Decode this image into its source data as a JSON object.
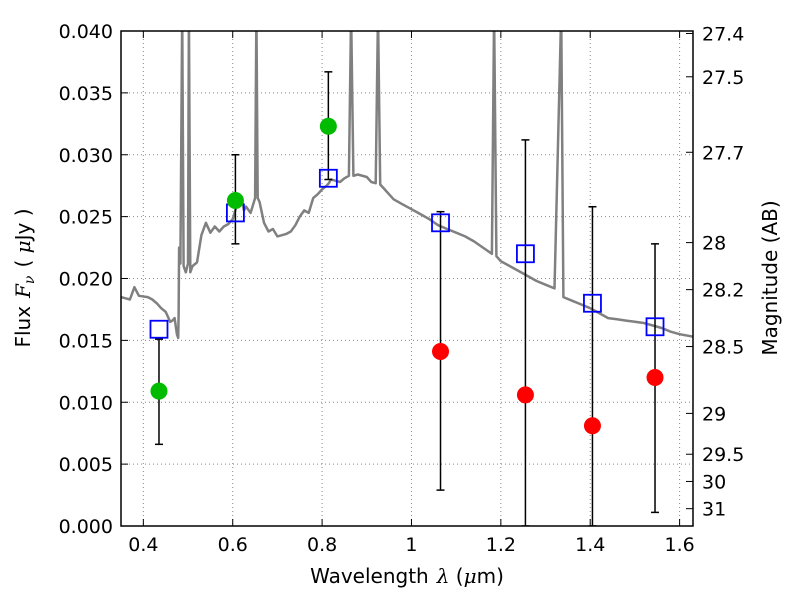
{
  "chart_data": {
    "type": "scatter",
    "title": "",
    "xlabel": "Wavelength",
    "xlabel_symbol": "λ",
    "xlabel_unit_open": " (",
    "xlabel_unit_mu": "μ",
    "xlabel_unit_rest": "m)",
    "ylabel": "Flux",
    "ylabel_symbol": "F",
    "ylabel_subscript": "ν",
    "ylabel_unit_open": "( ",
    "ylabel_unit_mu": "μ",
    "ylabel_unit_rest": "Jy )",
    "y2label": "Magnitude (AB)",
    "xlim": [
      0.35,
      1.63
    ],
    "ylim": [
      0.0,
      0.04
    ],
    "grid": true,
    "x_ticks": [
      0.4,
      0.6,
      0.8,
      1.0,
      1.2,
      1.4,
      1.6
    ],
    "x_tick_labels": [
      "0.4",
      "0.6",
      "0.8",
      "1",
      "1.2",
      "1.4",
      "1.6"
    ],
    "y_ticks": [
      0.0,
      0.005,
      0.01,
      0.015,
      0.02,
      0.025,
      0.03,
      0.035,
      0.04
    ],
    "y_tick_labels": [
      "0.000",
      "0.005",
      "0.010",
      "0.015",
      "0.020",
      "0.025",
      "0.030",
      "0.035",
      "0.040"
    ],
    "mag_ticks": [
      {
        "label": "27.4",
        "flux": 0.0398
      },
      {
        "label": "27.5",
        "flux": 0.0363
      },
      {
        "label": "27.7",
        "flux": 0.0302
      },
      {
        "label": "28",
        "flux": 0.0229
      },
      {
        "label": "28.2",
        "flux": 0.0191
      },
      {
        "label": "28.5",
        "flux": 0.0145
      },
      {
        "label": "29",
        "flux": 0.0091
      },
      {
        "label": "29.5",
        "flux": 0.0058
      },
      {
        "label": "30",
        "flux": 0.0036
      },
      {
        "label": "31",
        "flux": 0.0014
      }
    ],
    "colors": {
      "model_spectrum": "#808080",
      "detections": "#00bb00",
      "non_detections": "#ff0000",
      "model_photometry": "#0000ff",
      "errorbars": "#000000",
      "grid": "#888888"
    },
    "series": [
      {
        "kind": "spectrum",
        "points": [
          [
            0.35,
            0.0185
          ],
          [
            0.37,
            0.0183
          ],
          [
            0.38,
            0.0193
          ],
          [
            0.39,
            0.0186
          ],
          [
            0.41,
            0.0185
          ],
          [
            0.42,
            0.0183
          ],
          [
            0.43,
            0.018
          ],
          [
            0.44,
            0.0176
          ],
          [
            0.45,
            0.0173
          ],
          [
            0.46,
            0.0165
          ],
          [
            0.465,
            0.0166
          ],
          [
            0.47,
            0.0168
          ],
          [
            0.475,
            0.0155
          ],
          [
            0.478,
            0.0152
          ],
          [
            0.479,
            0.017
          ],
          [
            0.48,
            0.0225
          ],
          [
            0.483,
            0.0212
          ],
          [
            0.487,
            0.0415
          ],
          [
            0.49,
            0.021
          ],
          [
            0.495,
            0.0205
          ],
          [
            0.5,
            0.0212
          ],
          [
            0.502,
            0.0415
          ],
          [
            0.505,
            0.0205
          ],
          [
            0.51,
            0.021
          ],
          [
            0.52,
            0.0213
          ],
          [
            0.53,
            0.0235
          ],
          [
            0.54,
            0.0245
          ],
          [
            0.55,
            0.0237
          ],
          [
            0.56,
            0.0242
          ],
          [
            0.57,
            0.0238
          ],
          [
            0.58,
            0.0242
          ],
          [
            0.59,
            0.0244
          ],
          [
            0.6,
            0.0248
          ],
          [
            0.61,
            0.026
          ],
          [
            0.62,
            0.0265
          ],
          [
            0.625,
            0.0255
          ],
          [
            0.63,
            0.0258
          ],
          [
            0.64,
            0.0253
          ],
          [
            0.65,
            0.0265
          ],
          [
            0.653,
            0.0415
          ],
          [
            0.656,
            0.0265
          ],
          [
            0.66,
            0.0262
          ],
          [
            0.67,
            0.0245
          ],
          [
            0.68,
            0.0238
          ],
          [
            0.69,
            0.024
          ],
          [
            0.7,
            0.0234
          ],
          [
            0.71,
            0.0235
          ],
          [
            0.72,
            0.0236
          ],
          [
            0.73,
            0.0238
          ],
          [
            0.74,
            0.0243
          ],
          [
            0.75,
            0.025
          ],
          [
            0.76,
            0.0255
          ],
          [
            0.77,
            0.0253
          ],
          [
            0.78,
            0.0265
          ],
          [
            0.79,
            0.0268
          ],
          [
            0.8,
            0.0272
          ],
          [
            0.81,
            0.0275
          ],
          [
            0.815,
            0.0277
          ],
          [
            0.82,
            0.028
          ],
          [
            0.83,
            0.0279
          ],
          [
            0.84,
            0.0278
          ],
          [
            0.85,
            0.0281
          ],
          [
            0.86,
            0.0283
          ],
          [
            0.865,
            0.0415
          ],
          [
            0.87,
            0.0283
          ],
          [
            0.88,
            0.0284
          ],
          [
            0.9,
            0.0282
          ],
          [
            0.91,
            0.0278
          ],
          [
            0.92,
            0.0277
          ],
          [
            0.925,
            0.0415
          ],
          [
            0.93,
            0.0276
          ],
          [
            0.94,
            0.0272
          ],
          [
            0.95,
            0.0268
          ],
          [
            0.96,
            0.0264
          ],
          [
            0.98,
            0.026
          ],
          [
            1.0,
            0.0256
          ],
          [
            1.02,
            0.0252
          ],
          [
            1.04,
            0.0248
          ],
          [
            1.06,
            0.0243
          ],
          [
            1.08,
            0.024
          ],
          [
            1.1,
            0.0237
          ],
          [
            1.12,
            0.0234
          ],
          [
            1.14,
            0.023
          ],
          [
            1.16,
            0.0225
          ],
          [
            1.18,
            0.022
          ],
          [
            1.185,
            0.0415
          ],
          [
            1.19,
            0.0218
          ],
          [
            1.2,
            0.0214
          ],
          [
            1.22,
            0.021
          ],
          [
            1.25,
            0.0204
          ],
          [
            1.28,
            0.0198
          ],
          [
            1.3,
            0.0195
          ],
          [
            1.32,
            0.0192
          ],
          [
            1.335,
            0.0415
          ],
          [
            1.34,
            0.0185
          ],
          [
            1.36,
            0.0182
          ],
          [
            1.38,
            0.0179
          ],
          [
            1.4,
            0.0176
          ],
          [
            1.42,
            0.0172
          ],
          [
            1.44,
            0.0168
          ],
          [
            1.46,
            0.0167
          ],
          [
            1.48,
            0.0166
          ],
          [
            1.5,
            0.0165
          ],
          [
            1.52,
            0.0164
          ],
          [
            1.54,
            0.0162
          ],
          [
            1.56,
            0.016
          ],
          [
            1.58,
            0.0157
          ],
          [
            1.6,
            0.0155
          ],
          [
            1.63,
            0.0153
          ]
        ]
      },
      {
        "kind": "detections",
        "points": [
          {
            "x": 0.435,
            "y": 0.0109,
            "ylo": 0.0066,
            "yhi": 0.0151
          },
          {
            "x": 0.606,
            "y": 0.0263,
            "ylo": 0.0228,
            "yhi": 0.03
          },
          {
            "x": 0.814,
            "y": 0.0323,
            "ylo": 0.028,
            "yhi": 0.0367
          }
        ]
      },
      {
        "kind": "non_detections",
        "points": [
          {
            "x": 1.065,
            "y": 0.0141,
            "ylo": 0.0029,
            "yhi": 0.0254
          },
          {
            "x": 1.255,
            "y": 0.0106,
            "ylo": 0.0,
            "yhi": 0.0312
          },
          {
            "x": 1.405,
            "y": 0.0081,
            "ylo": 0.0,
            "yhi": 0.0258
          },
          {
            "x": 1.545,
            "y": 0.012,
            "ylo": 0.0011,
            "yhi": 0.0228
          }
        ]
      },
      {
        "kind": "model_photometry",
        "points": [
          {
            "x": 0.435,
            "y": 0.0159
          },
          {
            "x": 0.606,
            "y": 0.0253
          },
          {
            "x": 0.814,
            "y": 0.0281
          },
          {
            "x": 1.065,
            "y": 0.0245
          },
          {
            "x": 1.255,
            "y": 0.022
          },
          {
            "x": 1.405,
            "y": 0.018
          },
          {
            "x": 1.545,
            "y": 0.0161
          }
        ]
      }
    ]
  }
}
